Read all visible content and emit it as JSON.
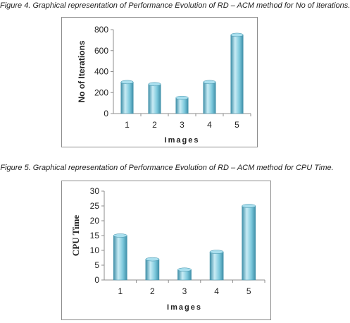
{
  "captions": {
    "figure4": "Figure 4. Graphical representation of Performance Evolution of RD – ACM method for No of Iterations.",
    "figure5": "Figure 5. Graphical representation of Performance Evolution of RD – ACM method for CPU Time."
  },
  "colors": {
    "bar_light": "#c8ecf5",
    "bar_mid": "#7cc8dc",
    "bar_dark": "#3f8fa8",
    "bar_top": "#a9dfee",
    "axis": "#8c8c8c"
  },
  "chart_data": [
    {
      "type": "bar",
      "title": "",
      "xlabel": "Images",
      "ylabel": "No of Iterations",
      "categories": [
        "1",
        "2",
        "3",
        "4",
        "5"
      ],
      "values": [
        300,
        280,
        150,
        300,
        750
      ],
      "ylim": [
        0,
        800
      ],
      "yticks": [
        0,
        200,
        400,
        600,
        800
      ],
      "grid": false,
      "legend": "none"
    },
    {
      "type": "bar",
      "title": "",
      "xlabel": "Images",
      "ylabel": "CPU Time",
      "categories": [
        "1",
        "2",
        "3",
        "4",
        "5"
      ],
      "values": [
        15,
        7,
        3.5,
        9.5,
        25
      ],
      "ylim": [
        0,
        30
      ],
      "yticks": [
        0,
        5,
        10,
        15,
        20,
        25,
        30
      ],
      "grid": false,
      "legend": "none"
    }
  ]
}
